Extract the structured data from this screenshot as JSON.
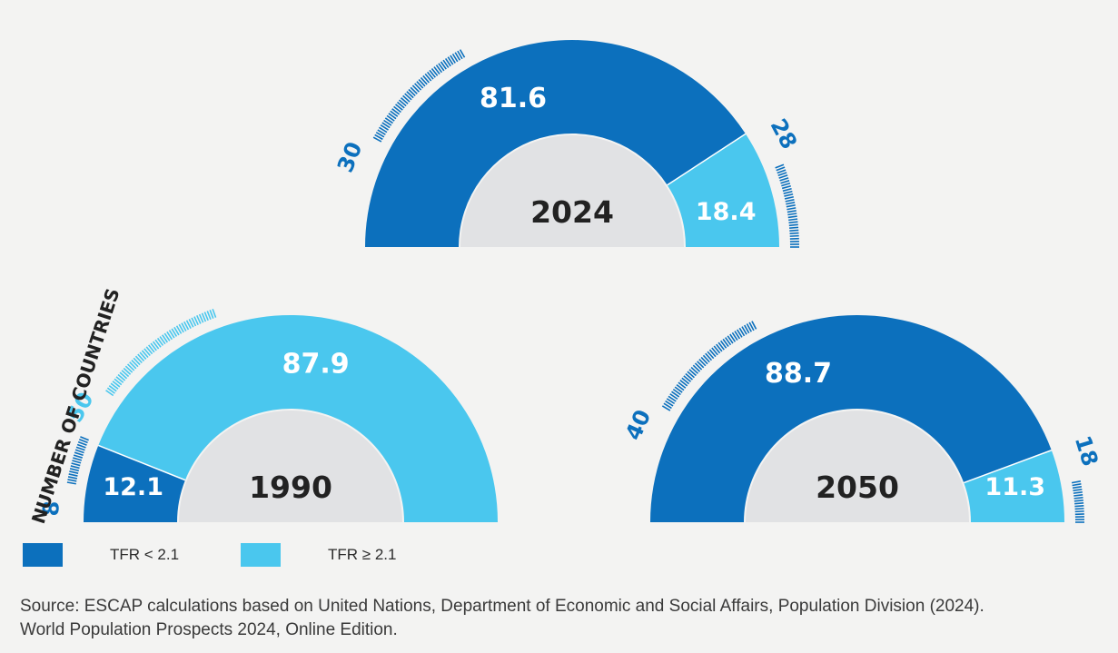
{
  "chart_data": {
    "type": "pie",
    "title": "",
    "units": "percent",
    "charts": [
      {
        "year": "2024",
        "segments": [
          {
            "label": "TFR < 2.1",
            "value": 81.6,
            "value_label": "81.6",
            "count": "30"
          },
          {
            "label": "TFR ≥ 2.1",
            "value": 18.4,
            "value_label": "18.4",
            "count": "28"
          }
        ]
      },
      {
        "year": "1990",
        "segments": [
          {
            "label": "TFR < 2.1",
            "value": 12.1,
            "value_label": "12.1",
            "count": "8"
          },
          {
            "label": "TFR ≥ 2.1",
            "value": 87.9,
            "value_label": "87.9",
            "count": "50"
          }
        ]
      },
      {
        "year": "2050",
        "segments": [
          {
            "label": "TFR < 2.1",
            "value": 88.7,
            "value_label": "88.7",
            "count": "40"
          },
          {
            "label": "TFR ≥ 2.1",
            "value": 11.3,
            "value_label": "11.3",
            "count": "18"
          }
        ]
      }
    ],
    "axis_label": "NUMBER OF COUNTRIES"
  },
  "legend": [
    {
      "label": "TFR < 2.1",
      "color": "#0c70bd"
    },
    {
      "label": "TFR ≥ 2.1",
      "color": "#4ac7ee"
    }
  ],
  "source": {
    "line1": "Source: ESCAP calculations based on United Nations, Department of Economic and Social Affairs, Population Division (2024).",
    "line2": "World Population Prospects 2024, Online Edition."
  },
  "colors": {
    "low": "#0c70bd",
    "high": "#4ac7ee",
    "center": "#e1e2e4",
    "text_dark": "#222222",
    "background": "#f3f3f2"
  }
}
